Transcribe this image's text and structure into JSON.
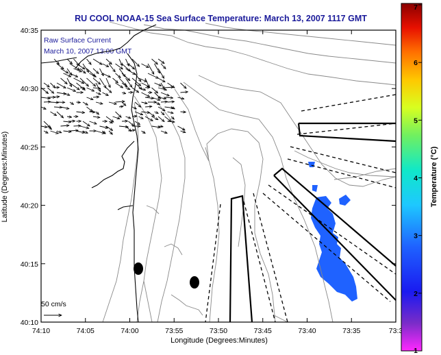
{
  "title": "RU COOL  NOAA-15  Sea Surface Temperature:  March 13, 2007 1117 GMT",
  "annotation": {
    "line1": "Raw Surface Current",
    "line2": "March 10, 2007 13:00 GMT"
  },
  "scale_bar_label": "50 cm/s",
  "x_axis": {
    "label": "Longitude (Degrees:Minutes)",
    "ticks": [
      "74:10",
      "74:05",
      "74:00",
      "73:55",
      "73:50",
      "73:45",
      "73:40",
      "73:35",
      "73:3"
    ]
  },
  "y_axis": {
    "label": "Latitude (Degrees:Minutes)",
    "ticks": [
      "40:35",
      "40:30",
      "40:25",
      "40:20",
      "40:15",
      "40:10"
    ]
  },
  "colorbar": {
    "label": "Temperature (°C)",
    "ticks": [
      "7",
      "6",
      "5",
      "4",
      "3",
      "2",
      "1"
    ],
    "range": [
      1,
      7
    ]
  },
  "colors": {
    "title": "#1a1a9a",
    "sst_patch": "#1f62ff",
    "contour": "#888888"
  }
}
